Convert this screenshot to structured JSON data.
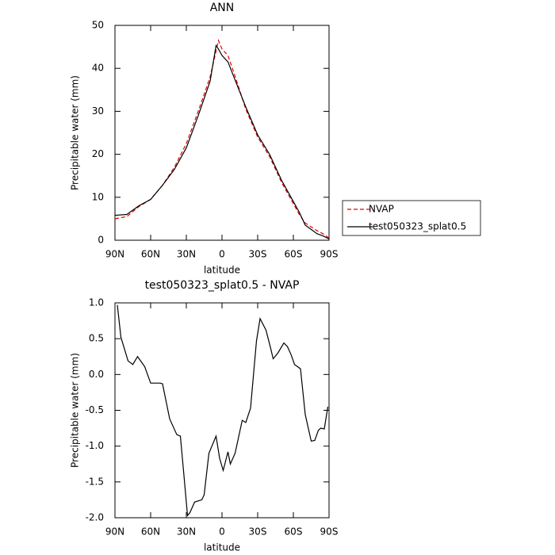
{
  "chart_data": [
    {
      "type": "line",
      "title": "ANN",
      "x_label": "latitude",
      "y_label": "Precipitable water (mm)",
      "x": [
        90,
        80,
        70,
        60,
        50,
        40,
        30,
        20,
        10,
        5,
        3,
        0,
        -5,
        -10,
        -20,
        -30,
        -40,
        -50,
        -60,
        -65,
        -70,
        -80,
        -85,
        -90
      ],
      "series": [
        {
          "name": "NVAP",
          "color": "#e00000",
          "dash": true,
          "values": [
            5,
            5.5,
            7.8,
            9.5,
            12.8,
            17,
            22.5,
            30,
            38,
            44,
            46.5,
            44.5,
            43,
            39,
            30.5,
            24,
            19.5,
            13.5,
            8.5,
            6,
            4,
            2.2,
            1.5,
            0.5
          ]
        },
        {
          "name": "test050323_splat0.5",
          "color": "#000000",
          "dash": false,
          "values": [
            5.8,
            6,
            8,
            9.5,
            12.8,
            16.5,
            21.5,
            29,
            37,
            45.3,
            44.5,
            43,
            41.5,
            38,
            31,
            24.5,
            20,
            14,
            9,
            6.5,
            3.5,
            1.5,
            1,
            0.3
          ]
        }
      ],
      "xlim": [
        90,
        -90
      ],
      "xticks": [
        {
          "value": 90,
          "label": "90N"
        },
        {
          "value": 60,
          "label": "60N"
        },
        {
          "value": 30,
          "label": "30N"
        },
        0,
        {
          "value": -30,
          "label": "30S"
        },
        {
          "value": -60,
          "label": "60S"
        },
        {
          "value": -90,
          "label": "90S"
        }
      ],
      "ylim": [
        0,
        50
      ],
      "yticks": [
        0,
        10,
        20,
        30,
        40,
        50
      ],
      "legend": "right"
    },
    {
      "type": "line",
      "title": "test050323_splat0.5 - NVAP",
      "x_label": "latitude",
      "y_label": "Precipitable water (mm)",
      "x": [
        88,
        85,
        79,
        75,
        71,
        65,
        60,
        52,
        50,
        44,
        38,
        35,
        32,
        29,
        27,
        23,
        17,
        15,
        11,
        5,
        2,
        -1,
        -5,
        -7,
        -11,
        -17,
        -20,
        -24,
        -29,
        -32,
        -37,
        -41,
        -43,
        -47,
        -52,
        -55,
        -58,
        -61,
        -66,
        -70,
        -75,
        -78,
        -81,
        -83,
        -86,
        -89
      ],
      "series": [
        {
          "name": "test050323_splat0.5 - NVAP",
          "color": "#000000",
          "dash": false,
          "values": [
            0.97,
            0.52,
            0.19,
            0.14,
            0.25,
            0.11,
            -0.12,
            -0.12,
            -0.13,
            -0.62,
            -0.84,
            -0.86,
            -1.41,
            -1.97,
            -1.93,
            -1.78,
            -1.75,
            -1.68,
            -1.1,
            -0.86,
            -1.17,
            -1.34,
            -1.08,
            -1.25,
            -1.1,
            -0.64,
            -0.67,
            -0.47,
            0.47,
            0.78,
            0.62,
            0.36,
            0.22,
            0.3,
            0.44,
            0.39,
            0.28,
            0.14,
            0.08,
            -0.56,
            -0.93,
            -0.92,
            -0.78,
            -0.75,
            -0.76,
            -0.45
          ]
        }
      ],
      "xlim": [
        90,
        -90
      ],
      "xticks": [
        {
          "value": 90,
          "label": "90N"
        },
        {
          "value": 60,
          "label": "60N"
        },
        {
          "value": 30,
          "label": "30N"
        },
        0,
        {
          "value": -30,
          "label": "30S"
        },
        {
          "value": -60,
          "label": "60S"
        },
        {
          "value": -90,
          "label": "90S"
        }
      ],
      "ylim": [
        -2,
        1
      ],
      "yticks": [
        {
          "value": -2,
          "label": "-2.0"
        },
        -1.5,
        {
          "value": -1,
          "label": "-1.0"
        },
        -0.5,
        {
          "value": 0,
          "label": "0.0"
        },
        0.5,
        {
          "value": 1,
          "label": "1.0"
        }
      ]
    }
  ]
}
